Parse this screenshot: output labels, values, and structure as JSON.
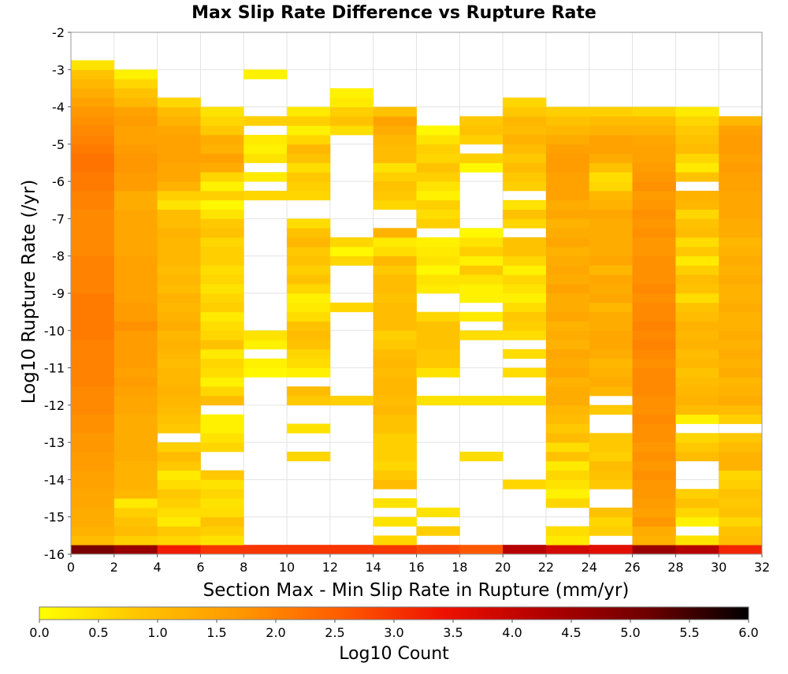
{
  "chart_data": {
    "type": "heatmap",
    "title": "Max Slip Rate Difference vs Rupture Rate",
    "xlabel": "Section Max - Min Slip Rate in Rupture (mm/yr)",
    "ylabel": "Log10 Rupture Rate (/yr)",
    "colorbar_label": "Log10 Count",
    "xlim": [
      0,
      32
    ],
    "ylim": [
      -16,
      -2
    ],
    "x_ticks": [
      "0",
      "2",
      "4",
      "6",
      "8",
      "10",
      "12",
      "14",
      "16",
      "18",
      "20",
      "22",
      "24",
      "26",
      "28",
      "30",
      "32"
    ],
    "y_ticks": [
      "-2",
      "-3",
      "-4",
      "-5",
      "-6",
      "-7",
      "-8",
      "-9",
      "-10",
      "-11",
      "-12",
      "-13",
      "-14",
      "-15",
      "-16"
    ],
    "colorbar_ticks": [
      "0.0",
      "0.5",
      "1.0",
      "1.5",
      "2.0",
      "2.5",
      "3.0",
      "3.5",
      "4.0",
      "4.5",
      "5.0",
      "5.5",
      "6.0"
    ],
    "color_range": [
      0,
      6
    ],
    "colormap": [
      "#ffff00",
      "#ffc400",
      "#ff9600",
      "#ff5a00",
      "#ee1100",
      "#b00000",
      "#6e0000",
      "#000000"
    ],
    "x_bin_width": 2,
    "y_bin_width": 0.25,
    "y_bin_starts": [
      -16.0,
      -15.75,
      -15.5,
      -15.25,
      -15.0,
      -14.75,
      -14.5,
      -14.25,
      -14.0,
      -13.75,
      -13.5,
      -13.25,
      -13.0,
      -12.75,
      -12.5,
      -12.25,
      -12.0,
      -11.75,
      -11.5,
      -11.25,
      -11.0,
      -10.75,
      -10.5,
      -10.25,
      -10.0,
      -9.75,
      -9.5,
      -9.25,
      -9.0,
      -8.75,
      -8.5,
      -8.25,
      -8.0,
      -7.75,
      -7.5,
      -7.25,
      -7.0,
      -6.75,
      -6.5,
      -6.25,
      -6.0,
      -5.75,
      -5.5,
      -5.25,
      -5.0,
      -4.75,
      -4.5,
      -4.25,
      -4.0,
      -3.75,
      -3.5,
      -3.25,
      -3.0
    ],
    "columns": [
      {
        "x_start": 0,
        "log10_count_by_y_bin": [
          5.0,
          1.0,
          1.2,
          1.3,
          1.3,
          1.4,
          1.4,
          1.5,
          1.5,
          1.6,
          1.6,
          1.7,
          1.7,
          1.8,
          1.8,
          1.9,
          1.9,
          1.9,
          2.0,
          2.0,
          2.0,
          2.0,
          2.0,
          2.1,
          2.1,
          2.1,
          2.1,
          2.1,
          2.0,
          2.0,
          2.0,
          2.0,
          1.9,
          1.9,
          1.9,
          1.9,
          1.9,
          2.0,
          2.0,
          2.1,
          2.1,
          2.2,
          2.2,
          2.1,
          2.0,
          1.9,
          1.8,
          1.7,
          1.5,
          1.3,
          1.1,
          0.9,
          0.4
        ]
      },
      {
        "x_start": 2,
        "log10_count_by_y_bin": [
          4.6,
          0.7,
          1.0,
          0.9,
          0.7,
          0.3,
          1.1,
          1.2,
          1.2,
          1.2,
          1.3,
          1.3,
          1.3,
          1.3,
          1.3,
          1.4,
          1.4,
          1.5,
          1.6,
          1.5,
          1.6,
          1.6,
          1.6,
          1.6,
          1.8,
          1.6,
          1.6,
          1.5,
          1.5,
          1.5,
          1.5,
          1.5,
          1.4,
          1.4,
          1.4,
          1.4,
          1.4,
          1.3,
          1.3,
          1.6,
          1.6,
          1.7,
          1.7,
          1.6,
          1.5,
          1.5,
          1.6,
          1.5,
          1.1,
          0.9,
          0.6,
          0.2,
          null
        ]
      },
      {
        "x_start": 4,
        "log10_count_by_y_bin": [
          3.3,
          0.6,
          0.8,
          0.3,
          0.5,
          0.7,
          0.8,
          0.5,
          0.3,
          0.8,
          1.0,
          0.7,
          null,
          0.8,
          0.9,
          1.0,
          1.1,
          1.2,
          1.1,
          1.1,
          1.0,
          1.1,
          1.2,
          1.1,
          1.3,
          1.2,
          1.1,
          1.2,
          1.0,
          1.1,
          1.0,
          1.1,
          1.1,
          1.1,
          1.2,
          1.0,
          1.0,
          0.4,
          0.7,
          1.2,
          1.4,
          1.4,
          1.5,
          1.5,
          1.5,
          1.4,
          1.2,
          1.0,
          0.6,
          null,
          null,
          null,
          null
        ]
      },
      {
        "x_start": 6,
        "log10_count_by_y_bin": [
          3.0,
          0.4,
          0.7,
          0.9,
          0.5,
          0.4,
          0.6,
          0.4,
          0.8,
          null,
          null,
          0.6,
          0.4,
          0.2,
          0.2,
          null,
          1.0,
          0.6,
          0.2,
          0.5,
          0.6,
          0.3,
          0.9,
          0.6,
          0.5,
          0.3,
          0.7,
          0.6,
          0.4,
          0.6,
          0.5,
          0.7,
          0.7,
          0.6,
          0.9,
          0.8,
          0.4,
          0.1,
          0.7,
          0.2,
          0.6,
          1.3,
          1.5,
          1.2,
          1.3,
          0.8,
          0.6,
          0.4,
          null,
          null,
          null,
          null,
          null
        ]
      },
      {
        "x_start": 8,
        "log10_count_by_y_bin": [
          3.0,
          null,
          null,
          null,
          null,
          null,
          null,
          null,
          null,
          null,
          null,
          null,
          null,
          null,
          null,
          null,
          null,
          null,
          null,
          0.1,
          0.2,
          null,
          0.2,
          0.4,
          null,
          null,
          null,
          null,
          null,
          null,
          null,
          null,
          null,
          null,
          null,
          null,
          null,
          null,
          0.6,
          null,
          0.3,
          null,
          0.4,
          0.2,
          0.3,
          null,
          0.7,
          null,
          null,
          null,
          null,
          0.2,
          null
        ]
      },
      {
        "x_start": 10,
        "log10_count_by_y_bin": [
          3.0,
          null,
          null,
          null,
          null,
          null,
          null,
          null,
          null,
          null,
          0.6,
          null,
          null,
          0.4,
          null,
          null,
          0.8,
          1.0,
          null,
          0.2,
          0.5,
          0.6,
          0.9,
          1.0,
          0.9,
          0.5,
          0.3,
          0.2,
          0.6,
          0.9,
          0.7,
          0.9,
          0.8,
          1.1,
          0.9,
          0.5,
          null,
          null,
          0.6,
          0.7,
          0.8,
          0.5,
          0.9,
          1.1,
          0.6,
          0.2,
          0.7,
          0.3,
          null,
          null,
          null,
          null,
          null
        ]
      },
      {
        "x_start": 12,
        "log10_count_by_y_bin": [
          3.0,
          null,
          null,
          null,
          null,
          null,
          null,
          null,
          null,
          null,
          null,
          null,
          null,
          null,
          null,
          null,
          0.7,
          null,
          null,
          null,
          null,
          null,
          null,
          null,
          null,
          null,
          0.6,
          null,
          null,
          null,
          null,
          0.6,
          0.1,
          0.6,
          null,
          null,
          null,
          null,
          null,
          null,
          null,
          null,
          null,
          null,
          null,
          0.5,
          0.9,
          0.7,
          0.3,
          0.2,
          null,
          null,
          null
        ]
      },
      {
        "x_start": 14,
        "log10_count_by_y_bin": [
          3.0,
          0.6,
          null,
          0.4,
          null,
          0.4,
          null,
          1.0,
          0.8,
          0.6,
          0.7,
          0.7,
          0.7,
          0.9,
          0.9,
          1.1,
          1.0,
          1.1,
          1.1,
          1.0,
          1.1,
          1.0,
          0.8,
          0.7,
          1.0,
          1.0,
          1.0,
          0.9,
          1.0,
          1.0,
          0.8,
          1.1,
          0.5,
          0.3,
          1.2,
          null,
          null,
          0.6,
          0.8,
          0.9,
          0.7,
          0.4,
          1.0,
          1.0,
          1.1,
          1.3,
          1.5,
          0.9,
          null,
          null,
          null,
          null,
          null
        ]
      },
      {
        "x_start": 16,
        "log10_count_by_y_bin": [
          2.8,
          null,
          0.7,
          null,
          0.4,
          null,
          null,
          null,
          null,
          null,
          null,
          null,
          null,
          null,
          null,
          null,
          0.4,
          null,
          null,
          0.4,
          0.8,
          0.8,
          0.9,
          0.9,
          0.9,
          0.6,
          null,
          null,
          0.3,
          0.4,
          0.1,
          0.4,
          0.3,
          0.2,
          null,
          0.7,
          0.5,
          0.7,
          0.2,
          0.4,
          0.7,
          0.9,
          0.6,
          0.7,
          0.4,
          0.1,
          null,
          null,
          null,
          null,
          null,
          null,
          null
        ]
      },
      {
        "x_start": 18,
        "log10_count_by_y_bin": [
          2.6,
          null,
          null,
          null,
          null,
          null,
          null,
          null,
          null,
          null,
          0.5,
          null,
          null,
          null,
          null,
          null,
          0.4,
          null,
          null,
          null,
          null,
          null,
          null,
          0.5,
          null,
          0.3,
          null,
          0.2,
          0.2,
          0.4,
          0.8,
          0.2,
          0.7,
          0.4,
          0.1,
          null,
          null,
          null,
          null,
          null,
          null,
          0.1,
          0.7,
          null,
          0.7,
          0.9,
          0.8,
          null,
          null,
          null,
          null,
          null,
          null
        ]
      },
      {
        "x_start": 20,
        "log10_count_by_y_bin": [
          4.2,
          null,
          null,
          null,
          null,
          null,
          null,
          0.6,
          null,
          null,
          null,
          null,
          null,
          null,
          null,
          null,
          0.4,
          null,
          null,
          0.5,
          null,
          0.5,
          null,
          0.5,
          0.7,
          0.8,
          0.5,
          0.2,
          0.4,
          0.6,
          0.2,
          0.6,
          0.9,
          0.9,
          null,
          0.6,
          0.9,
          0.4,
          null,
          0.7,
          0.8,
          1.0,
          0.8,
          1.0,
          1.2,
          1.0,
          1.1,
          0.8,
          0.6,
          null,
          null,
          null,
          null
        ]
      },
      {
        "x_start": 22,
        "log10_count_by_y_bin": [
          3.8,
          0.3,
          0.5,
          null,
          null,
          0.6,
          0.2,
          0.4,
          0.6,
          0.3,
          0.9,
          0.5,
          1.0,
          0.8,
          1.0,
          1.1,
          1.3,
          1.3,
          1.2,
          1.4,
          1.3,
          1.4,
          1.2,
          1.3,
          1.2,
          1.4,
          1.3,
          1.3,
          1.5,
          1.3,
          1.4,
          1.3,
          1.2,
          1.4,
          1.3,
          1.2,
          1.4,
          1.3,
          1.5,
          1.5,
          1.5,
          1.6,
          1.6,
          1.5,
          1.3,
          1.1,
          0.9,
          0.7,
          null,
          null,
          null,
          null,
          null
        ]
      },
      {
        "x_start": 24,
        "log10_count_by_y_bin": [
          3.6,
          null,
          0.7,
          0.6,
          0.9,
          null,
          null,
          0.8,
          0.9,
          1.0,
          0.7,
          0.8,
          0.8,
          null,
          null,
          0.8,
          null,
          1.1,
          1.3,
          1.2,
          1.1,
          1.3,
          1.4,
          1.4,
          1.3,
          1.3,
          1.1,
          1.4,
          1.3,
          1.4,
          1.1,
          1.4,
          1.3,
          1.3,
          1.3,
          1.3,
          1.4,
          1.2,
          1.1,
          0.6,
          0.5,
          0.9,
          1.3,
          1.5,
          1.5,
          1.2,
          1.0,
          0.7,
          null,
          null,
          null,
          null,
          null
        ]
      },
      {
        "x_start": 26,
        "log10_count_by_y_bin": [
          4.6,
          1.2,
          1.3,
          1.7,
          1.5,
          1.6,
          1.7,
          1.7,
          1.8,
          1.7,
          1.8,
          1.7,
          1.8,
          1.8,
          1.9,
          1.8,
          1.8,
          1.9,
          1.9,
          1.9,
          1.8,
          1.9,
          2.0,
          1.9,
          2.0,
          1.9,
          1.9,
          1.8,
          1.9,
          1.8,
          1.8,
          1.8,
          1.7,
          1.7,
          1.8,
          1.7,
          1.8,
          1.7,
          1.6,
          1.8,
          1.7,
          1.6,
          1.5,
          1.5,
          1.4,
          1.2,
          1.0,
          0.6,
          null,
          null,
          null,
          null,
          null
        ]
      },
      {
        "x_start": 28,
        "log10_count_by_y_bin": [
          4.2,
          0.4,
          null,
          0.2,
          0.6,
          0.9,
          0.7,
          null,
          null,
          null,
          1.0,
          0.8,
          0.6,
          null,
          0.2,
          1.0,
          1.2,
          1.1,
          1.0,
          0.9,
          1.1,
          1.0,
          1.2,
          1.1,
          1.2,
          1.0,
          0.9,
          0.5,
          0.9,
          1.0,
          0.7,
          0.3,
          0.8,
          0.5,
          1.0,
          0.9,
          0.6,
          1.1,
          1.2,
          null,
          0.9,
          0.3,
          0.6,
          1.0,
          0.9,
          0.8,
          0.6,
          0.3,
          null,
          null,
          null,
          null,
          null
        ]
      },
      {
        "x_start": 30,
        "log10_count_by_y_bin": [
          3.2,
          1.0,
          0.9,
          0.6,
          0.9,
          0.8,
          0.9,
          0.7,
          0.6,
          1.2,
          1.2,
          1.0,
          0.8,
          null,
          0.7,
          1.0,
          1.3,
          1.2,
          1.1,
          1.3,
          1.2,
          1.3,
          1.2,
          1.3,
          1.2,
          1.2,
          1.3,
          1.2,
          1.2,
          1.3,
          1.2,
          1.3,
          1.2,
          1.1,
          1.3,
          1.3,
          1.4,
          1.4,
          1.4,
          1.5,
          1.5,
          1.6,
          1.5,
          1.6,
          1.6,
          1.5,
          1.1,
          null,
          null,
          null,
          null,
          null,
          null
        ]
      }
    ]
  }
}
